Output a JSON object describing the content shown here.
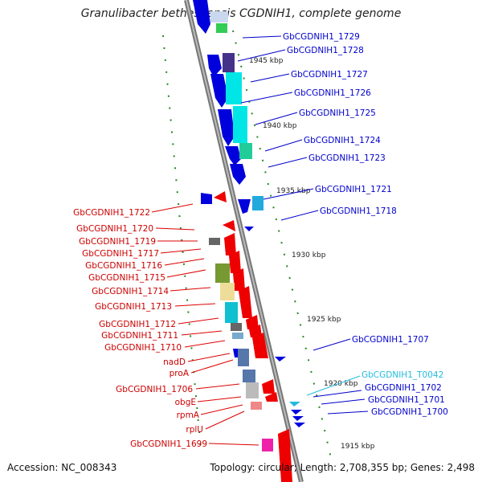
{
  "title": "Granulibacter bethesdensis CGDNIH1, complete genome",
  "footer": {
    "accession": "Accession: NC_008343",
    "summary": "Topology: circular; Length: 2,708,355 bp; Genes: 2,498"
  },
  "ruler_ticks": [
    "1945 kbp",
    "1940 kbp",
    "1935 kbp",
    "1930 kbp",
    "1925 kbp",
    "1920 kbp",
    "1915 kbp"
  ],
  "right_labels": [
    "GbCGDNIH1_1729",
    "GbCGDNIH1_1728",
    "GbCGDNIH1_1727",
    "GbCGDNIH1_1726",
    "GbCGDNIH1_1725",
    "GbCGDNIH1_1724",
    "GbCGDNIH1_1723",
    "GbCGDNIH1_1721",
    "GbCGDNIH1_1718",
    "GbCGDNIH1_1707",
    "GbCGDNIH1_T0042",
    "GbCGDNIH1_1702",
    "GbCGDNIH1_1701",
    "GbCGDNIH1_1700"
  ],
  "left_labels": [
    "GbCGDNIH1_1722",
    "GbCGDNIH1_1720",
    "GbCGDNIH1_1719",
    "GbCGDNIH1_1717",
    "GbCGDNIH1_1716",
    "GbCGDNIH1_1715",
    "GbCGDNIH1_1714",
    "GbCGDNIH1_1713",
    "GbCGDNIH1_1712",
    "GbCGDNIH1_1711",
    "GbCGDNIH1_1710",
    "nadD",
    "proA",
    "GbCGDNIH1_1706",
    "obgE",
    "rpmA",
    "rplU",
    "GbCGDNIH1_1699"
  ],
  "colors": {
    "forward": "#0000e0",
    "reverse": "#ee0000",
    "trna": "#22bbdd",
    "backbone": "#8a8a8a",
    "ticks": "#228822"
  }
}
